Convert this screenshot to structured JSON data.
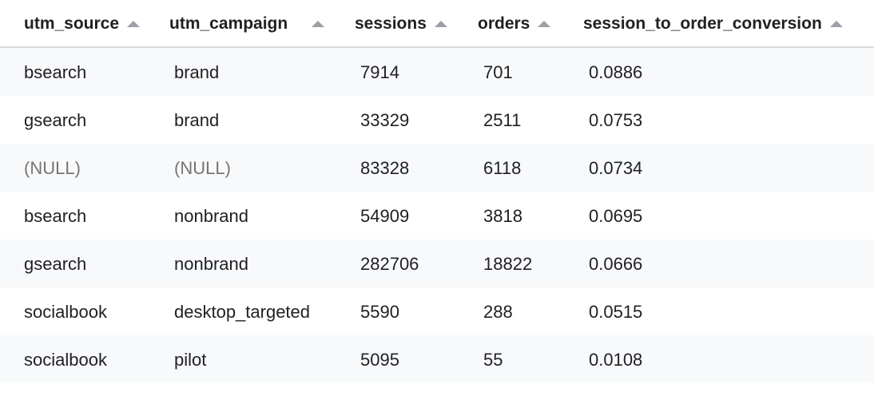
{
  "table": {
    "columns": [
      {
        "label": "utm_source",
        "sort_icon": "sort-ascending-icon"
      },
      {
        "label": "utm_campaign",
        "sort_icon": "sort-ascending-icon"
      },
      {
        "label": "sessions",
        "sort_icon": "sort-ascending-icon"
      },
      {
        "label": "orders",
        "sort_icon": "sort-ascending-icon"
      },
      {
        "label": "session_to_order_conversion",
        "sort_icon": "sort-ascending-icon"
      }
    ],
    "rows": [
      {
        "utm_source": "bsearch",
        "utm_campaign": "brand",
        "sessions": "7914",
        "orders": "701",
        "conversion": "0.0886"
      },
      {
        "utm_source": "gsearch",
        "utm_campaign": "brand",
        "sessions": "33329",
        "orders": "2511",
        "conversion": "0.0753"
      },
      {
        "utm_source": "(NULL)",
        "utm_campaign": "(NULL)",
        "sessions": "83328",
        "orders": "6118",
        "conversion": "0.0734"
      },
      {
        "utm_source": "bsearch",
        "utm_campaign": "nonbrand",
        "sessions": "54909",
        "orders": "3818",
        "conversion": "0.0695"
      },
      {
        "utm_source": "gsearch",
        "utm_campaign": "nonbrand",
        "sessions": "282706",
        "orders": "18822",
        "conversion": "0.0666"
      },
      {
        "utm_source": "socialbook",
        "utm_campaign": "desktop_targeted",
        "sessions": "5590",
        "orders": "288",
        "conversion": "0.0515"
      },
      {
        "utm_source": "socialbook",
        "utm_campaign": "pilot",
        "sessions": "5095",
        "orders": "55",
        "conversion": "0.0108"
      }
    ]
  },
  "colors": {
    "header_text": "#202124",
    "null_text": "#757575",
    "stripe": "#f8f9fa",
    "sort_icon": "#9aa0a6"
  }
}
